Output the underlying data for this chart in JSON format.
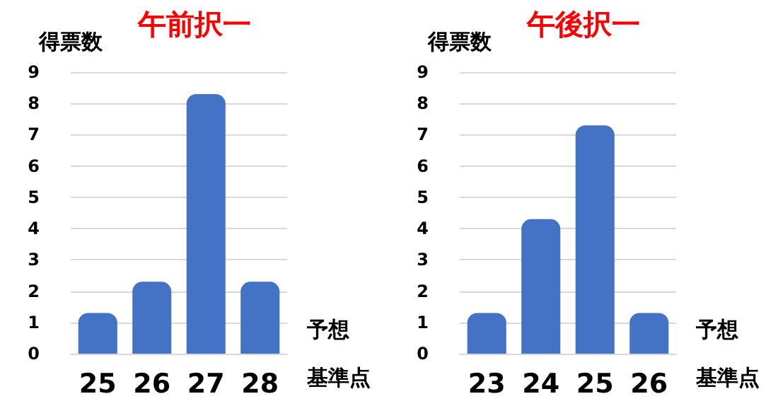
{
  "chart_data": [
    {
      "type": "bar",
      "title": "午前択一",
      "xlabel": "予想基準点",
      "ylabel": "得票数",
      "categories": [
        "25",
        "26",
        "27",
        "28"
      ],
      "values": [
        1.3,
        2.3,
        8.3,
        2.3
      ],
      "color": "#4472c4",
      "ylim": [
        0,
        9
      ],
      "yticks": [
        0,
        1,
        2,
        3,
        4,
        5,
        6,
        7,
        8,
        9
      ],
      "grid": "y"
    },
    {
      "type": "bar",
      "title": "午後択一",
      "xlabel": "予想基準点",
      "ylabel": "得票数",
      "categories": [
        "23",
        "24",
        "25",
        "26"
      ],
      "values": [
        1.3,
        4.3,
        7.3,
        1.3
      ],
      "color": "#4472c4",
      "ylim": [
        0,
        9
      ],
      "yticks": [
        0,
        1,
        2,
        3,
        4,
        5,
        6,
        7,
        8,
        9
      ],
      "grid": "y"
    }
  ]
}
